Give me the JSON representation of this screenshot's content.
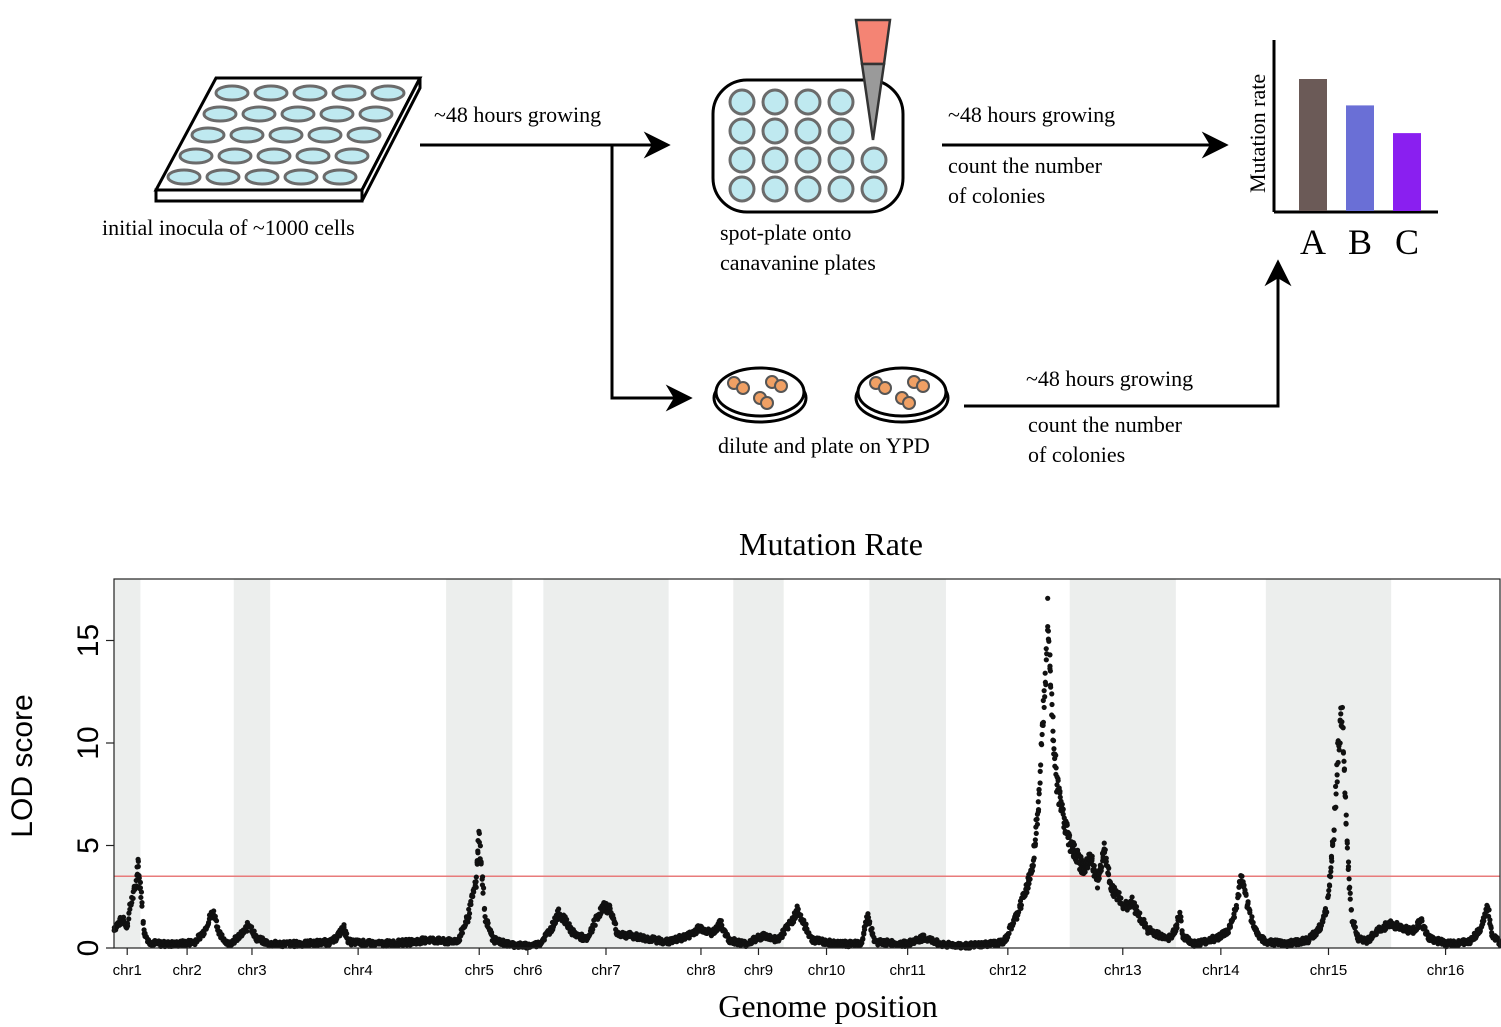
{
  "workflow": {
    "plate_caption": "initial inocula of ~1000 cells",
    "step1_label": "~48 hours growing",
    "spot_caption_line1": "spot-plate onto",
    "spot_caption_line2": "canavanine plates",
    "step2_label": "~48 hours growing",
    "step2_sub_line1": "count the number",
    "step2_sub_line2": "of colonies",
    "ypd_caption": "dilute and plate on YPD",
    "step3_label": "~48 hours growing",
    "step3_sub_line1": "count the number",
    "step3_sub_line2": "of colonies",
    "mini_chart": {
      "ylabel": "Mutation rate",
      "bars": [
        {
          "label": "A",
          "value": 1.0,
          "color": "#6b5a57"
        },
        {
          "label": "B",
          "value": 0.8,
          "color": "#6a6fd6"
        },
        {
          "label": "C",
          "value": 0.59,
          "color": "#8a1ff0"
        }
      ]
    },
    "colors": {
      "well_fill": "#bfe9f0",
      "well_stroke": "#6b6b6b",
      "tip_top": "#f48474",
      "colony": "#f0a064"
    }
  },
  "chart_data": {
    "type": "scatter",
    "title": "Mutation Rate",
    "xlabel": "Genome position",
    "ylabel": "LOD score",
    "ylim": [
      0,
      18
    ],
    "yticks": [
      0,
      5,
      10,
      15
    ],
    "threshold": 3.5,
    "threshold_color": "#e87b7b",
    "shade_color": "#eceeed",
    "chromosomes": [
      {
        "name": "chr1",
        "start": 0,
        "end": 230,
        "shaded": true
      },
      {
        "name": "chr2",
        "start": 230,
        "end": 1043,
        "shaded": false
      },
      {
        "name": "chr3",
        "start": 1043,
        "end": 1360,
        "shaded": true
      },
      {
        "name": "chr4",
        "start": 1360,
        "end": 2892,
        "shaded": false
      },
      {
        "name": "chr5",
        "start": 2892,
        "end": 3469,
        "shaded": true
      },
      {
        "name": "chr6",
        "start": 3469,
        "end": 3739,
        "shaded": false
      },
      {
        "name": "chr7",
        "start": 3739,
        "end": 4830,
        "shaded": true
      },
      {
        "name": "chr8",
        "start": 4830,
        "end": 5393,
        "shaded": false
      },
      {
        "name": "chr9",
        "start": 5393,
        "end": 5832,
        "shaded": true
      },
      {
        "name": "chr10",
        "start": 5832,
        "end": 6578,
        "shaded": false
      },
      {
        "name": "chr11",
        "start": 6578,
        "end": 7245,
        "shaded": true
      },
      {
        "name": "chr12",
        "start": 7245,
        "end": 8323,
        "shaded": false
      },
      {
        "name": "chr13",
        "start": 8323,
        "end": 9247,
        "shaded": true
      },
      {
        "name": "chr14",
        "start": 9247,
        "end": 10031,
        "shaded": false
      },
      {
        "name": "chr15",
        "start": 10031,
        "end": 11122,
        "shaded": true
      },
      {
        "name": "chr16",
        "start": 11122,
        "end": 12070,
        "shaded": false
      }
    ],
    "baseline": [
      [
        0,
        1.0
      ],
      [
        40,
        1.2
      ],
      [
        80,
        1.5
      ],
      [
        110,
        0.9
      ],
      [
        130,
        1.8
      ],
      [
        160,
        2.5
      ],
      [
        190,
        3.2
      ],
      [
        205,
        4.5
      ],
      [
        215,
        3.3
      ],
      [
        230,
        3.0
      ],
      [
        260,
        0.8
      ],
      [
        300,
        0.3
      ],
      [
        400,
        0.2
      ],
      [
        550,
        0.2
      ],
      [
        700,
        0.3
      ],
      [
        780,
        0.8
      ],
      [
        840,
        1.6
      ],
      [
        870,
        1.7
      ],
      [
        920,
        0.6
      ],
      [
        1000,
        0.2
      ],
      [
        1100,
        0.6
      ],
      [
        1180,
        1.2
      ],
      [
        1230,
        0.5
      ],
      [
        1350,
        0.2
      ],
      [
        1600,
        0.2
      ],
      [
        1900,
        0.3
      ],
      [
        2000,
        1.0
      ],
      [
        2040,
        0.3
      ],
      [
        2300,
        0.2
      ],
      [
        2600,
        0.3
      ],
      [
        2750,
        0.4
      ],
      [
        2900,
        0.3
      ],
      [
        3000,
        0.4
      ],
      [
        3080,
        1.5
      ],
      [
        3120,
        2.5
      ],
      [
        3150,
        3.2
      ],
      [
        3175,
        5.6
      ],
      [
        3200,
        3.6
      ],
      [
        3230,
        1.5
      ],
      [
        3300,
        0.4
      ],
      [
        3420,
        0.2
      ],
      [
        3600,
        0.1
      ],
      [
        3700,
        0.2
      ],
      [
        3800,
        0.9
      ],
      [
        3870,
        1.7
      ],
      [
        3930,
        1.3
      ],
      [
        4000,
        0.7
      ],
      [
        4120,
        0.4
      ],
      [
        4200,
        1.5
      ],
      [
        4260,
        2.0
      ],
      [
        4320,
        1.9
      ],
      [
        4380,
        0.7
      ],
      [
        4500,
        0.6
      ],
      [
        4700,
        0.4
      ],
      [
        4830,
        0.3
      ],
      [
        5000,
        0.6
      ],
      [
        5100,
        1.0
      ],
      [
        5200,
        0.7
      ],
      [
        5280,
        1.2
      ],
      [
        5350,
        0.4
      ],
      [
        5500,
        0.2
      ],
      [
        5650,
        0.6
      ],
      [
        5780,
        0.4
      ],
      [
        5900,
        1.3
      ],
      [
        5950,
        1.9
      ],
      [
        6000,
        1.2
      ],
      [
        6080,
        0.4
      ],
      [
        6300,
        0.2
      ],
      [
        6500,
        0.2
      ],
      [
        6560,
        1.6
      ],
      [
        6620,
        0.3
      ],
      [
        6900,
        0.2
      ],
      [
        7050,
        0.5
      ],
      [
        7200,
        0.2
      ],
      [
        7400,
        0.1
      ],
      [
        7650,
        0.2
      ],
      [
        7750,
        0.3
      ],
      [
        7850,
        1.5
      ],
      [
        7920,
        2.5
      ],
      [
        8000,
        4.0
      ],
      [
        8060,
        8.0
      ],
      [
        8100,
        12.5
      ],
      [
        8130,
        16.8
      ],
      [
        8170,
        11.0
      ],
      [
        8210,
        8.0
      ],
      [
        8260,
        6.5
      ],
      [
        8320,
        5.2
      ],
      [
        8380,
        4.5
      ],
      [
        8440,
        3.8
      ],
      [
        8500,
        4.5
      ],
      [
        8560,
        3.2
      ],
      [
        8620,
        4.8
      ],
      [
        8680,
        3.0
      ],
      [
        8740,
        2.5
      ],
      [
        8800,
        2.0
      ],
      [
        8860,
        2.3
      ],
      [
        8920,
        1.6
      ],
      [
        9000,
        0.9
      ],
      [
        9100,
        0.6
      ],
      [
        9200,
        0.5
      ],
      [
        9247,
        1.0
      ],
      [
        9280,
        1.8
      ],
      [
        9300,
        0.6
      ],
      [
        9400,
        0.2
      ],
      [
        9500,
        0.3
      ],
      [
        9600,
        0.5
      ],
      [
        9700,
        0.8
      ],
      [
        9770,
        1.9
      ],
      [
        9810,
        3.4
      ],
      [
        9850,
        2.5
      ],
      [
        9900,
        1.5
      ],
      [
        9950,
        0.7
      ],
      [
        10031,
        0.3
      ],
      [
        10200,
        0.2
      ],
      [
        10400,
        0.4
      ],
      [
        10500,
        1.0
      ],
      [
        10560,
        2.0
      ],
      [
        10600,
        4.0
      ],
      [
        10630,
        6.5
      ],
      [
        10660,
        10.0
      ],
      [
        10690,
        11.5
      ],
      [
        10720,
        7.5
      ],
      [
        10750,
        3.5
      ],
      [
        10780,
        1.5
      ],
      [
        10830,
        0.5
      ],
      [
        10900,
        0.3
      ],
      [
        11000,
        0.8
      ],
      [
        11100,
        1.2
      ],
      [
        11200,
        1.0
      ],
      [
        11300,
        0.8
      ],
      [
        11380,
        1.3
      ],
      [
        11440,
        0.5
      ],
      [
        11500,
        0.4
      ],
      [
        11600,
        0.2
      ],
      [
        11800,
        0.3
      ],
      [
        11900,
        0.9
      ],
      [
        11960,
        2.0
      ],
      [
        12000,
        0.6
      ],
      [
        12070,
        0.2
      ]
    ]
  }
}
